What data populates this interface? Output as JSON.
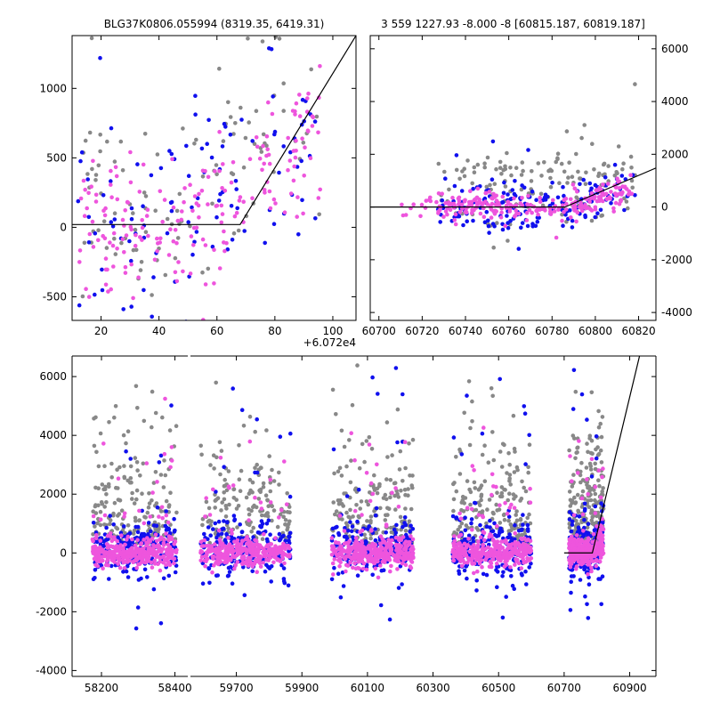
{
  "chart_data": [
    {
      "panel": "top-left",
      "type": "scatter",
      "title": "BLG37K0806.055994 (8319.35, 6419.31)",
      "x_offset_label": "+6.072e4",
      "xlim": [
        10,
        108
      ],
      "ylim": [
        -670,
        1380
      ],
      "x_ticks": [
        20,
        40,
        60,
        80,
        100
      ],
      "y_ticks": [
        -500,
        0,
        500,
        1000
      ],
      "model_line": {
        "x": [
          10,
          68,
          108
        ],
        "y": [
          20,
          20,
          1380
        ]
      },
      "series": [
        {
          "name": "gray",
          "color": "#888888",
          "seed": 11,
          "count": 110
        },
        {
          "name": "blue",
          "color": "#1010ee",
          "seed": 22,
          "count": 110
        },
        {
          "name": "magenta",
          "color": "#ee55dd",
          "seed": 33,
          "count": 200
        }
      ]
    },
    {
      "panel": "top-right",
      "type": "scatter",
      "title": "3 559 1227.93 -8.000 -8 [60815.187, 60819.187]",
      "xlim": [
        60696,
        60828
      ],
      "ylim": [
        -4300,
        6500
      ],
      "x_ticks": [
        60700,
        60720,
        60740,
        60760,
        60780,
        60800,
        60820
      ],
      "y_ticks": [
        -4000,
        -2000,
        0,
        2000,
        4000,
        6000
      ],
      "model_line": {
        "x": [
          60696,
          60786,
          60828
        ],
        "y": [
          0,
          0,
          1480
        ]
      },
      "series": [
        {
          "name": "gray",
          "color": "#888888",
          "seed": 44,
          "count": 150
        },
        {
          "name": "blue",
          "color": "#1010ee",
          "seed": 55,
          "count": 180
        },
        {
          "name": "magenta",
          "color": "#ee55dd",
          "seed": 66,
          "count": 260
        }
      ]
    },
    {
      "panel": "bottom",
      "type": "scatter",
      "title": "",
      "broken_x_axis": true,
      "ylim": [
        -4200,
        6700
      ],
      "y_ticks": [
        -4000,
        -2000,
        0,
        2000,
        4000,
        6000
      ],
      "segments": [
        {
          "xlim": [
            58120,
            58435
          ],
          "x_ticks": [
            58200,
            58400
          ]
        },
        {
          "xlim": [
            59560,
            60980
          ],
          "x_ticks": [
            59700,
            59900,
            60100,
            60300,
            60500,
            60700,
            60900
          ]
        }
      ],
      "seasons": [
        {
          "start": 58175,
          "end": 58405
        },
        {
          "start": 59590,
          "end": 59865
        },
        {
          "start": 59990,
          "end": 60240
        },
        {
          "start": 60360,
          "end": 60600
        },
        {
          "start": 60715,
          "end": 60820
        }
      ],
      "model_line": {
        "x": [
          60700,
          60786,
          60930
        ],
        "y": [
          0,
          0,
          6700
        ]
      },
      "series": [
        {
          "name": "gray",
          "color": "#888888",
          "seed": 77,
          "count": 900
        },
        {
          "name": "blue",
          "color": "#1010ee",
          "seed": 88,
          "count": 1100
        },
        {
          "name": "magenta",
          "color": "#ee55dd",
          "seed": 99,
          "count": 1700
        }
      ]
    }
  ]
}
